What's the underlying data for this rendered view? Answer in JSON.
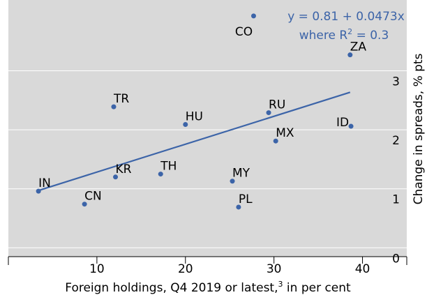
{
  "chart_data": {
    "type": "scatter",
    "xlabel": "Foreign holdings, Q4 2019 or latest,",
    "xlabel_sup": "3",
    "xlabel_end": " in per cent",
    "ylabel": "Change in spreads, % pts",
    "annotation_line1": "y = 0.81 + 0.0473x",
    "annotation_line2": "where R",
    "annotation_sup": "2",
    "annotation_end": " = 0.3",
    "labels": [
      "IN",
      "CN",
      "KR",
      "TR",
      "TH",
      "HU",
      "MY",
      "PL",
      "CO",
      "RU",
      "MX",
      "ID",
      "ZA"
    ],
    "x": [
      3.4,
      8.6,
      12.1,
      11.9,
      17.2,
      20.0,
      25.3,
      26.0,
      27.7,
      29.4,
      30.2,
      38.7,
      38.6
    ],
    "values": [
      0.96,
      0.74,
      1.2,
      2.39,
      1.25,
      2.09,
      1.13,
      0.69,
      3.93,
      2.29,
      1.81,
      2.06,
      3.27
    ],
    "color": "#3c64a8",
    "trendline": {
      "intercept": 0.81,
      "slope": 0.0473,
      "x_range": [
        3.4,
        38.6
      ]
    },
    "xlim": [
      0,
      45
    ],
    "xticks": [
      10,
      20,
      30,
      40
    ],
    "ylim": [
      -0.15,
      4.2
    ],
    "yticks": [
      0,
      1,
      2,
      3
    ],
    "grid": true
  }
}
